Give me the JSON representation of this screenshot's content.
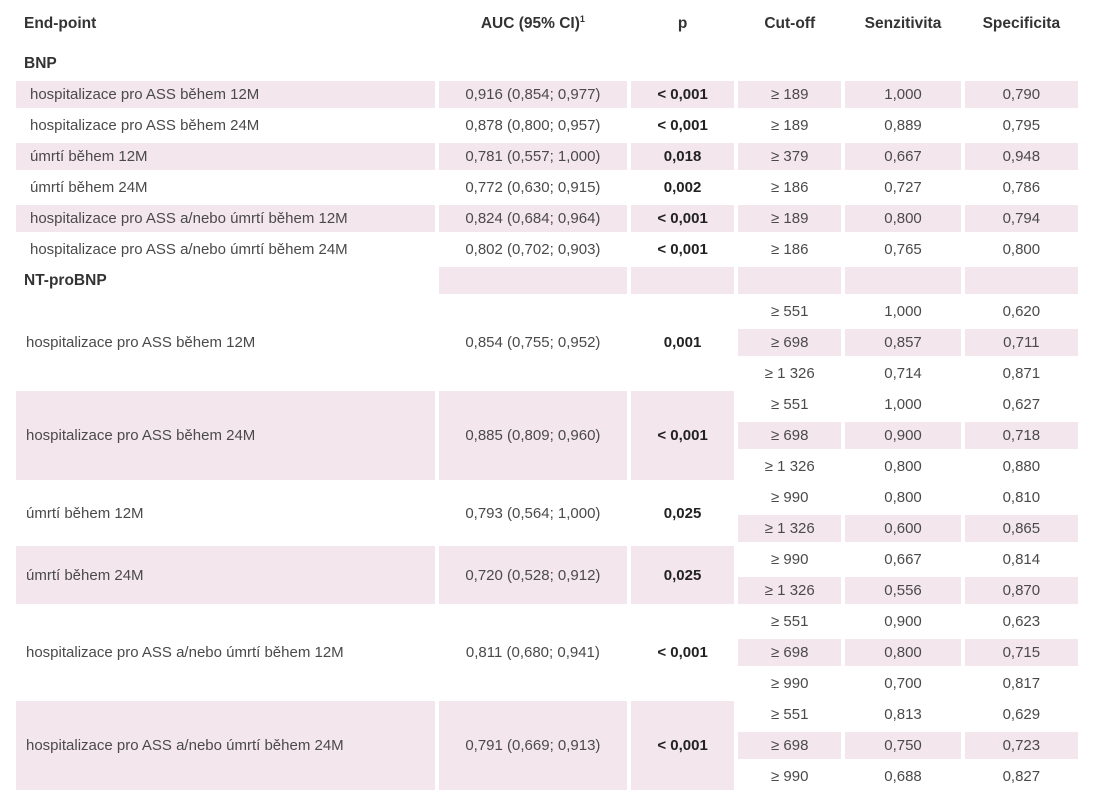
{
  "headers": {
    "endpoint": "End-point",
    "auc": "AUC (95% CI)",
    "auc_sup": "1",
    "p": "p",
    "cutoff": "Cut-off",
    "senz": "Senzitivita",
    "spec": "Specificita"
  },
  "bnp": {
    "section": "BNP",
    "rows": [
      {
        "label": "hospitalizace pro ASS během 12M",
        "auc": "0,916 (0,854; 0,977)",
        "p": "< 0,001",
        "cutoff": "≥ 189",
        "senz": "1,000",
        "spec": "0,790"
      },
      {
        "label": "hospitalizace pro ASS během 24M",
        "auc": "0,878 (0,800; 0,957)",
        "p": "< 0,001",
        "cutoff": "≥ 189",
        "senz": "0,889",
        "spec": "0,795"
      },
      {
        "label": "úmrtí během 12M",
        "auc": "0,781 (0,557; 1,000)",
        "p": "0,018",
        "cutoff": "≥ 379",
        "senz": "0,667",
        "spec": "0,948"
      },
      {
        "label": "úmrtí během 24M",
        "auc": "0,772 (0,630; 0,915)",
        "p": "0,002",
        "cutoff": "≥ 186",
        "senz": "0,727",
        "spec": "0,786"
      },
      {
        "label": "hospitalizace pro ASS a/nebo úmrtí během 12M",
        "auc": "0,824 (0,684; 0,964)",
        "p": "< 0,001",
        "cutoff": "≥ 189",
        "senz": "0,800",
        "spec": "0,794"
      },
      {
        "label": "hospitalizace pro ASS a/nebo úmrtí během 24M",
        "auc": "0,802 (0,702; 0,903)",
        "p": "< 0,001",
        "cutoff": "≥ 186",
        "senz": "0,765",
        "spec": "0,800"
      }
    ]
  },
  "ntprobnp": {
    "section": "NT-proBNP",
    "groups": [
      {
        "label": "hospitalizace pro ASS během 12M",
        "auc": "0,854 (0,755; 0,952)",
        "p": "0,001",
        "sub": [
          {
            "cutoff": "≥ 551",
            "senz": "1,000",
            "spec": "0,620"
          },
          {
            "cutoff": "≥ 698",
            "senz": "0,857",
            "spec": "0,711"
          },
          {
            "cutoff": "≥ 1 326",
            "senz": "0,714",
            "spec": "0,871"
          }
        ]
      },
      {
        "label": "hospitalizace pro ASS během 24M",
        "auc": "0,885 (0,809; 0,960)",
        "p": "< 0,001",
        "sub": [
          {
            "cutoff": "≥ 551",
            "senz": "1,000",
            "spec": "0,627"
          },
          {
            "cutoff": "≥ 698",
            "senz": "0,900",
            "spec": "0,718"
          },
          {
            "cutoff": "≥ 1 326",
            "senz": "0,800",
            "spec": "0,880"
          }
        ]
      },
      {
        "label": "úmrtí během 12M",
        "auc": "0,793 (0,564; 1,000)",
        "p": "0,025",
        "sub": [
          {
            "cutoff": "≥ 990",
            "senz": "0,800",
            "spec": "0,810"
          },
          {
            "cutoff": "≥ 1 326",
            "senz": "0,600",
            "spec": "0,865"
          }
        ]
      },
      {
        "label": "úmrtí během 24M",
        "auc": "0,720 (0,528; 0,912)",
        "p": "0,025",
        "sub": [
          {
            "cutoff": "≥ 990",
            "senz": "0,667",
            "spec": "0,814"
          },
          {
            "cutoff": "≥ 1 326",
            "senz": "0,556",
            "spec": "0,870"
          }
        ]
      },
      {
        "label": "hospitalizace pro ASS a/nebo úmrtí během 12M",
        "auc": "0,811 (0,680; 0,941)",
        "p": "< 0,001",
        "sub": [
          {
            "cutoff": "≥ 551",
            "senz": "0,900",
            "spec": "0,623"
          },
          {
            "cutoff": "≥ 698",
            "senz": "0,800",
            "spec": "0,715"
          },
          {
            "cutoff": "≥ 990",
            "senz": "0,700",
            "spec": "0,817"
          }
        ]
      },
      {
        "label": "hospitalizace pro ASS a/nebo úmrtí během 24M",
        "auc": "0,791 (0,669; 0,913)",
        "p": "< 0,001",
        "sub": [
          {
            "cutoff": "≥ 551",
            "senz": "0,813",
            "spec": "0,629"
          },
          {
            "cutoff": "≥ 698",
            "senz": "0,750",
            "spec": "0,723"
          },
          {
            "cutoff": "≥ 990",
            "senz": "0,688",
            "spec": "0,827"
          }
        ]
      }
    ]
  },
  "colors": {
    "shade": "#f3e6ec",
    "text": "#4a4a4a",
    "header": "#333333"
  }
}
